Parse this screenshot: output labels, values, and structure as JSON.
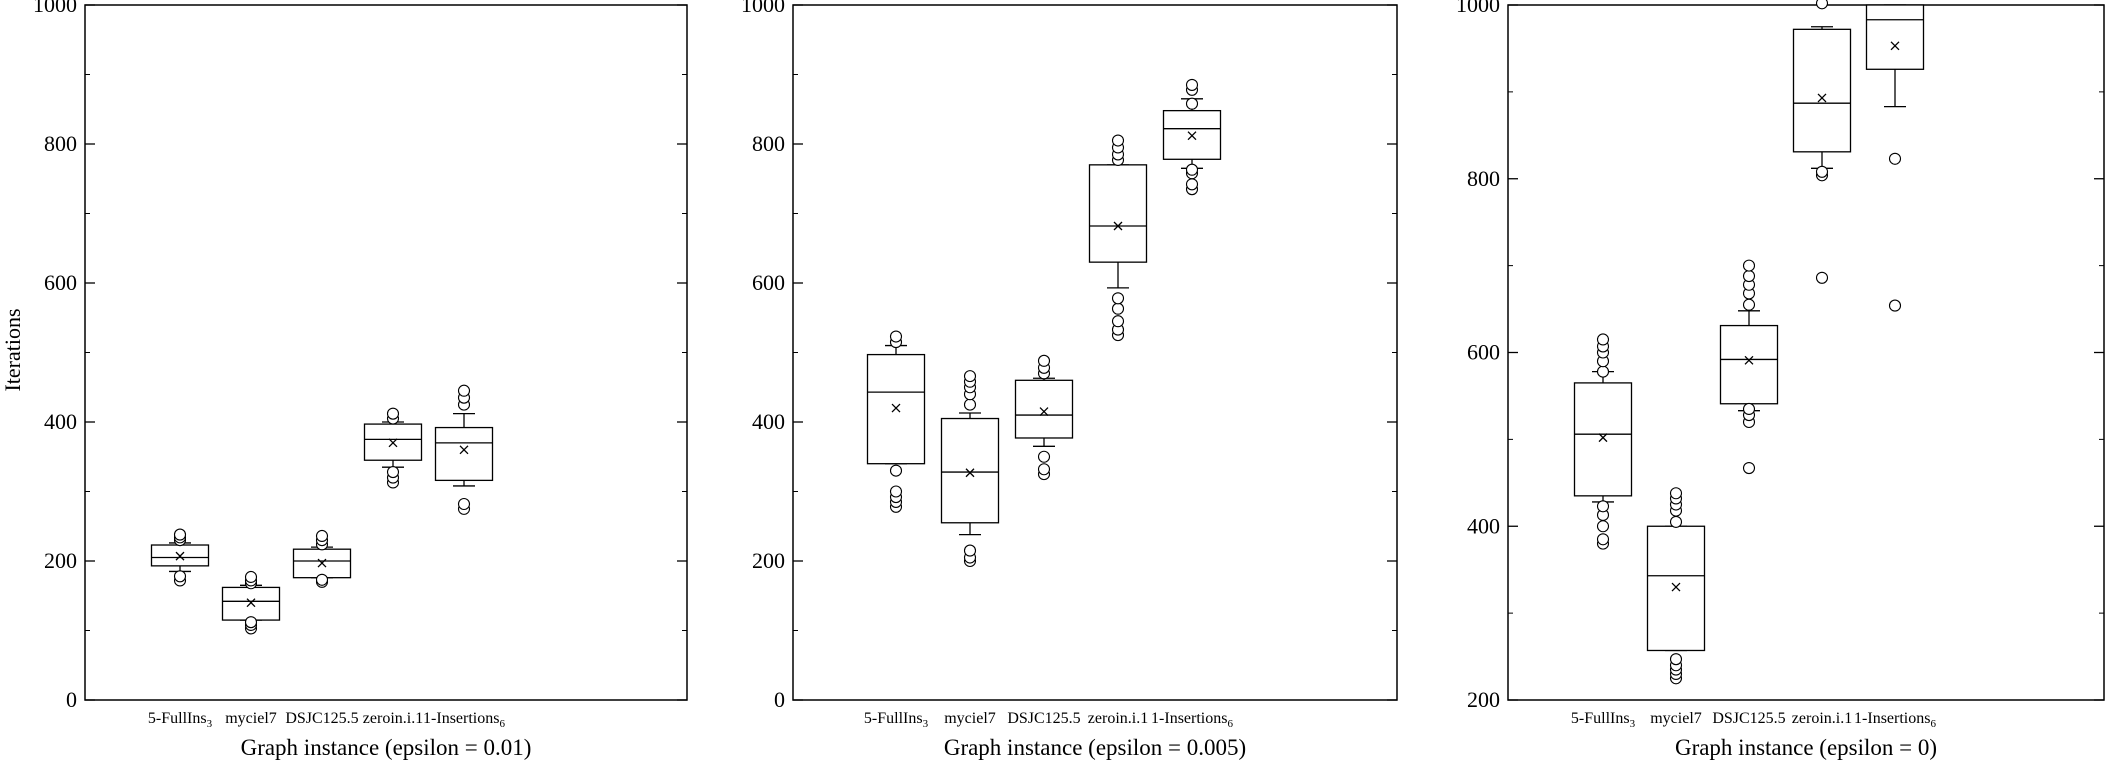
{
  "chart_data": [
    {
      "type": "box",
      "xlabel": "Graph instance (epsilon = 0.01)",
      "ylabel": "Iterations",
      "ylim": [
        0,
        1000
      ],
      "yticks": [
        0,
        200,
        400,
        600,
        800,
        1000
      ],
      "grid": false,
      "categories": [
        {
          "label": "5-FullIns",
          "sub": "3"
        },
        {
          "label": "myciel7",
          "sub": ""
        },
        {
          "label": "DSJC125.5",
          "sub": ""
        },
        {
          "label": "zeroin.i.1",
          "sub": ""
        },
        {
          "label": "1-Insertions",
          "sub": "6"
        }
      ],
      "boxes": [
        {
          "whisker_low": 185,
          "q1": 193,
          "median": 205,
          "q3": 223,
          "whisker_high": 226,
          "mean": 207,
          "outliers": [
            172,
            178,
            230,
            234,
            238
          ]
        },
        {
          "whisker_low": 115,
          "q1": 115,
          "median": 142,
          "q3": 162,
          "whisker_high": 165,
          "mean": 140,
          "outliers": [
            103,
            108,
            112,
            168,
            172,
            177
          ]
        },
        {
          "whisker_low": 176,
          "q1": 176,
          "median": 200,
          "q3": 217,
          "whisker_high": 220,
          "mean": 197,
          "outliers": [
            170,
            173,
            224,
            230,
            236
          ]
        },
        {
          "whisker_low": 335,
          "q1": 345,
          "median": 375,
          "q3": 397,
          "whisker_high": 400,
          "mean": 370,
          "outliers": [
            313,
            320,
            328,
            405,
            412
          ]
        },
        {
          "whisker_low": 308,
          "q1": 316,
          "median": 370,
          "q3": 392,
          "whisker_high": 412,
          "mean": 360,
          "outliers": [
            275,
            282,
            425,
            435,
            445
          ]
        }
      ]
    },
    {
      "type": "box",
      "xlabel": "Graph instance (epsilon = 0.005)",
      "ylabel": "",
      "ylim": [
        0,
        1000
      ],
      "yticks": [
        0,
        200,
        400,
        600,
        800,
        1000
      ],
      "grid": false,
      "categories": [
        {
          "label": "5-FullIns",
          "sub": "3"
        },
        {
          "label": "myciel7",
          "sub": ""
        },
        {
          "label": "DSJC125.5",
          "sub": ""
        },
        {
          "label": "zeroin.i.1",
          "sub": ""
        },
        {
          "label": "1-Insertions",
          "sub": "6"
        }
      ],
      "boxes": [
        {
          "whisker_low": 340,
          "q1": 340,
          "median": 443,
          "q3": 497,
          "whisker_high": 510,
          "mean": 420,
          "outliers": [
            278,
            285,
            292,
            300,
            330,
            515,
            523
          ]
        },
        {
          "whisker_low": 238,
          "q1": 255,
          "median": 328,
          "q3": 405,
          "whisker_high": 413,
          "mean": 327,
          "outliers": [
            200,
            205,
            215,
            425,
            440,
            450,
            458,
            466
          ]
        },
        {
          "whisker_low": 365,
          "q1": 377,
          "median": 410,
          "q3": 460,
          "whisker_high": 463,
          "mean": 415,
          "outliers": [
            325,
            332,
            350,
            470,
            478,
            488
          ]
        },
        {
          "whisker_low": 593,
          "q1": 630,
          "median": 682,
          "q3": 770,
          "whisker_high": 770,
          "mean": 682,
          "outliers": [
            525,
            533,
            545,
            563,
            578,
            777,
            785,
            795,
            805
          ]
        },
        {
          "whisker_low": 765,
          "q1": 778,
          "median": 822,
          "q3": 848,
          "whisker_high": 865,
          "mean": 812,
          "outliers": [
            735,
            742,
            758,
            763,
            858,
            878,
            885
          ]
        }
      ]
    },
    {
      "type": "box",
      "xlabel": "Graph instance (epsilon = 0)",
      "ylabel": "",
      "ylim": [
        200,
        1000
      ],
      "yticks": [
        200,
        400,
        600,
        800,
        1000
      ],
      "grid": false,
      "categories": [
        {
          "label": "5-FullIns",
          "sub": "3"
        },
        {
          "label": "myciel7",
          "sub": ""
        },
        {
          "label": "DSJC125.5",
          "sub": ""
        },
        {
          "label": "zeroin.i.1",
          "sub": ""
        },
        {
          "label": "1-Insertions",
          "sub": "6"
        }
      ],
      "boxes": [
        {
          "whisker_low": 428,
          "q1": 435,
          "median": 506,
          "q3": 565,
          "whisker_high": 578,
          "mean": 502,
          "outliers": [
            380,
            385,
            400,
            413,
            423,
            578,
            590,
            600,
            607,
            615
          ]
        },
        {
          "whisker_low": 257,
          "q1": 257,
          "median": 343,
          "q3": 400,
          "whisker_high": 400,
          "mean": 330,
          "outliers": [
            225,
            230,
            235,
            240,
            247,
            405,
            418,
            425,
            432,
            438
          ]
        },
        {
          "whisker_low": 533,
          "q1": 541,
          "median": 592,
          "q3": 631,
          "whisker_high": 648,
          "mean": 591,
          "outliers": [
            467,
            520,
            528,
            535,
            655,
            668,
            678,
            688,
            700
          ]
        },
        {
          "whisker_low": 812,
          "q1": 831,
          "median": 887,
          "q3": 972,
          "whisker_high": 975,
          "mean": 893,
          "outliers": [
            686,
            804,
            808,
            1002
          ]
        },
        {
          "whisker_low": 883,
          "q1": 926,
          "median": 983,
          "q3": 1000,
          "whisker_high": 1000,
          "mean": 953,
          "outliers": [
            654,
            823
          ]
        }
      ]
    }
  ]
}
